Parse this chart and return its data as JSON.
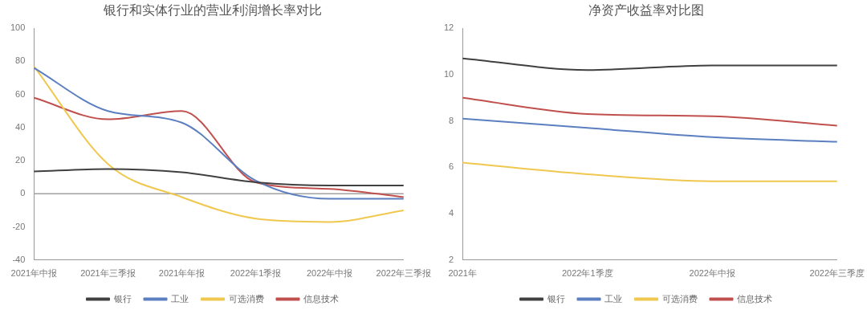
{
  "chart_data": [
    {
      "type": "line",
      "title": "银行和实体行业的营业利润增长率对比",
      "categories": [
        "2021年中报",
        "2021年三季报",
        "2021年年报",
        "2022年1季报",
        "2022年中报",
        "2022年三季报"
      ],
      "series": [
        {
          "name": "银行",
          "color": "#404040",
          "values": [
            13.5,
            15,
            13,
            7,
            5,
            5
          ]
        },
        {
          "name": "工业",
          "color": "#5b7fc0",
          "values": [
            76,
            50,
            43,
            8,
            -3,
            -3
          ]
        },
        {
          "name": "可选消费",
          "color": "#f0c850",
          "values": [
            77,
            18,
            -2,
            -15,
            -17,
            -10
          ]
        },
        {
          "name": "信息技术",
          "color": "#c0504d",
          "values": [
            58,
            45,
            50,
            7,
            3,
            -2
          ]
        }
      ],
      "ylim": [
        -40,
        100
      ],
      "yticks": [
        -40,
        -20,
        0,
        20,
        40,
        60,
        80,
        100
      ],
      "ref_lines": [
        {
          "axis": "y",
          "value": 0,
          "color": "#a0a0a0"
        }
      ],
      "grid": false,
      "legend": "bottom",
      "marker": "none",
      "line_style": "solid"
    },
    {
      "type": "line",
      "title": "净资产收益率对比图",
      "categories": [
        "2021年",
        "2022年1季度",
        "2022年中报",
        "2022年三季度"
      ],
      "series": [
        {
          "name": "银行",
          "color": "#404040",
          "values": [
            10.7,
            10.2,
            10.4,
            10.4
          ]
        },
        {
          "name": "工业",
          "color": "#5b7fc0",
          "values": [
            8.1,
            7.7,
            7.3,
            7.1
          ]
        },
        {
          "name": "可选消费",
          "color": "#f0c850",
          "values": [
            6.2,
            5.7,
            5.4,
            5.4
          ]
        },
        {
          "name": "信息技术",
          "color": "#c0504d",
          "values": [
            9.0,
            8.3,
            8.2,
            7.8
          ]
        }
      ],
      "ylim": [
        2,
        12
      ],
      "yticks": [
        2,
        4,
        6,
        8,
        10,
        12
      ],
      "grid": false,
      "legend": "bottom",
      "marker": "none",
      "line_style": "solid"
    }
  ]
}
